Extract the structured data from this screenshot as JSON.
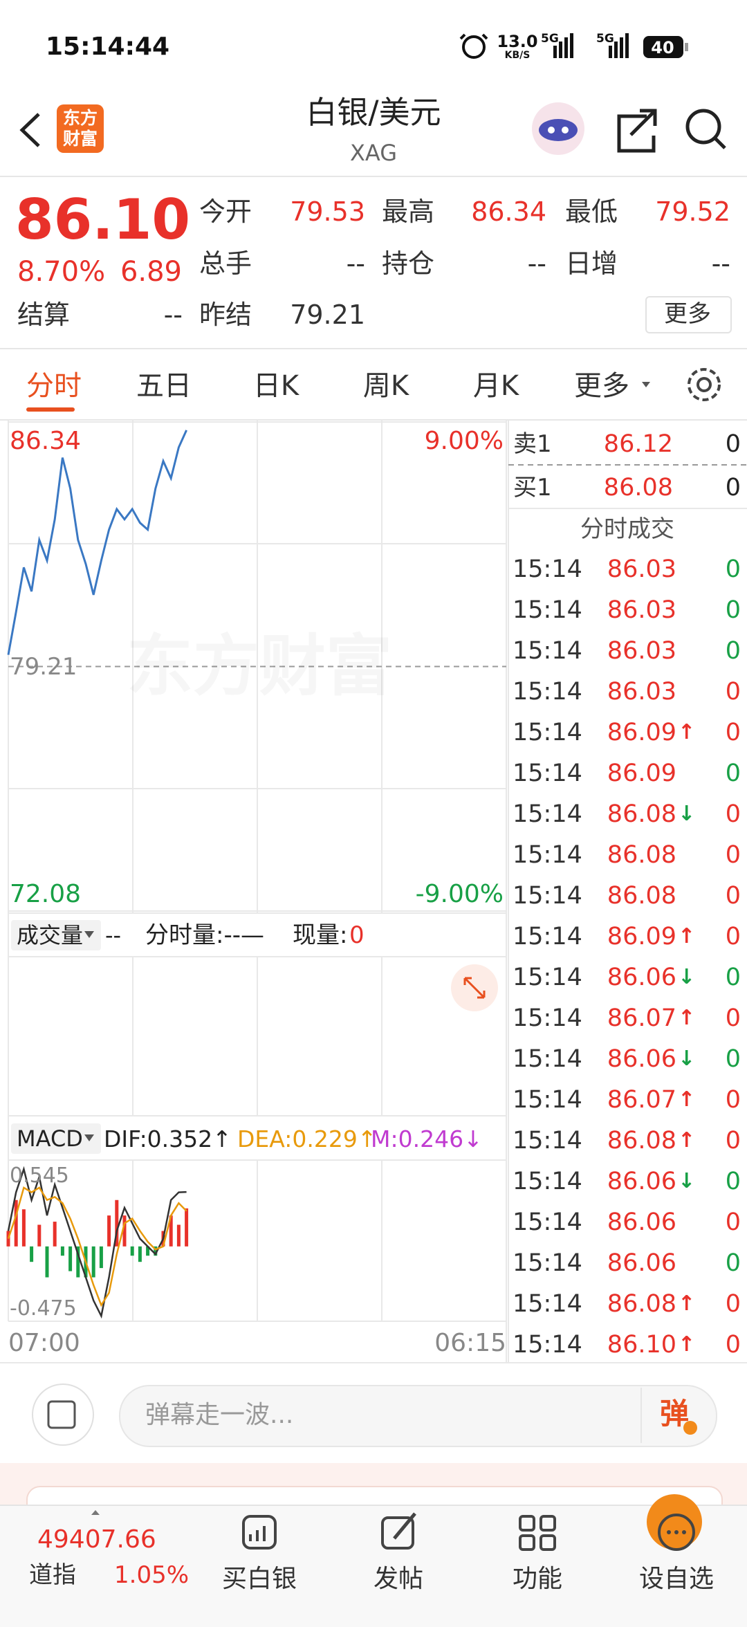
{
  "status_bar": {
    "time": "15:14:44",
    "net_speed": "13.0",
    "net_speed_unit": "KB/S",
    "signal_1": "5G",
    "signal_2": "5G",
    "battery": "40"
  },
  "header": {
    "logo_line1": "东方",
    "logo_line2": "财富",
    "title": "白银/美元",
    "subtitle": "XAG"
  },
  "quote": {
    "price": "86.10",
    "change_pct": "8.70%",
    "change": "6.89",
    "fields": [
      {
        "label": "今开",
        "value": "79.53"
      },
      {
        "label": "最高",
        "value": "86.34"
      },
      {
        "label": "最低",
        "value": "79.52"
      },
      {
        "label": "总手",
        "value": "--"
      },
      {
        "label": "持仓",
        "value": "--"
      },
      {
        "label": "日增",
        "value": "--"
      },
      {
        "label": "结算",
        "value": "--"
      },
      {
        "label": "昨结",
        "value": "79.21"
      }
    ],
    "more_button": "更多"
  },
  "tabs": [
    "分时",
    "五日",
    "日K",
    "周K",
    "月K",
    "更多"
  ],
  "intraday": {
    "top_price": 86.34,
    "top_pct": "9.00%",
    "prev_close": 79.21,
    "bottom_price": 72.08,
    "bottom_pct": "-9.00%",
    "watermark": "东方财富",
    "line_color": "#3a78c3",
    "prices": [
      79.55,
      80.8,
      82.1,
      81.4,
      82.9,
      82.3,
      83.5,
      85.3,
      84.4,
      82.9,
      82.2,
      81.3,
      82.3,
      83.2,
      83.8,
      83.5,
      83.8,
      83.4,
      83.2,
      84.4,
      85.2,
      84.7,
      85.6,
      86.1
    ],
    "start_time": "07:00",
    "end_time": "06:15"
  },
  "volume_panel": {
    "selector": "成交量",
    "total": "--",
    "minute_volume": "分时量:--—",
    "current_label": "现量:",
    "current": "0"
  },
  "macd": {
    "selector": "MACD",
    "dif": "DIF:0.352↑",
    "dea": "DEA:0.229↑",
    "m": "M:0.246↓",
    "top": 0.545,
    "bottom": -0.475,
    "dif_values": [
      0.1,
      0.35,
      0.5,
      0.3,
      0.45,
      0.2,
      0.4,
      0.25,
      0.1,
      -0.05,
      -0.2,
      -0.35,
      -0.45,
      -0.2,
      0.1,
      0.25,
      0.15,
      0.05,
      0.0,
      -0.05,
      0.05,
      0.3,
      0.35,
      0.352
    ],
    "dea_values": [
      0.05,
      0.2,
      0.38,
      0.35,
      0.38,
      0.3,
      0.32,
      0.28,
      0.18,
      0.05,
      -0.1,
      -0.25,
      -0.38,
      -0.3,
      -0.05,
      0.15,
      0.18,
      0.1,
      0.03,
      -0.02,
      0.0,
      0.2,
      0.28,
      0.229
    ],
    "hist_values": [
      0.1,
      0.3,
      0.24,
      -0.1,
      0.14,
      -0.2,
      0.16,
      -0.06,
      -0.16,
      -0.2,
      -0.2,
      -0.2,
      -0.14,
      0.2,
      0.3,
      0.2,
      -0.06,
      -0.1,
      -0.06,
      -0.06,
      0.1,
      0.2,
      0.14,
      0.246
    ]
  },
  "order_book": [
    {
      "label": "卖1",
      "price": "86.12",
      "volume": "0"
    },
    {
      "label": "买1",
      "price": "86.08",
      "volume": "0"
    }
  ],
  "trades_title": "分时成交",
  "trades": [
    {
      "time": "15:14",
      "price": "86.03",
      "volume": "0",
      "volume_color": "#18a046"
    },
    {
      "time": "15:14",
      "price": "86.03",
      "volume": "0",
      "volume_color": "#18a046"
    },
    {
      "time": "15:14",
      "price": "86.03",
      "volume": "0",
      "volume_color": "#18a046"
    },
    {
      "time": "15:14",
      "price": "86.03",
      "volume": "0",
      "volume_color": "#e8312a"
    },
    {
      "time": "15:14",
      "price": "86.09",
      "arrow": "↑",
      "volume": "0",
      "volume_color": "#e8312a"
    },
    {
      "time": "15:14",
      "price": "86.09",
      "volume": "0",
      "volume_color": "#18a046"
    },
    {
      "time": "15:14",
      "price": "86.08",
      "arrow": "↓",
      "volume": "0",
      "volume_color": "#e8312a"
    },
    {
      "time": "15:14",
      "price": "86.08",
      "volume": "0",
      "volume_color": "#e8312a"
    },
    {
      "time": "15:14",
      "price": "86.08",
      "volume": "0",
      "volume_color": "#e8312a"
    },
    {
      "time": "15:14",
      "price": "86.09",
      "arrow": "↑",
      "volume": "0",
      "volume_color": "#e8312a"
    },
    {
      "time": "15:14",
      "price": "86.06",
      "arrow": "↓",
      "volume": "0",
      "volume_color": "#18a046"
    },
    {
      "time": "15:14",
      "price": "86.07",
      "arrow": "↑",
      "volume": "0",
      "volume_color": "#e8312a"
    },
    {
      "time": "15:14",
      "price": "86.06",
      "arrow": "↓",
      "volume": "0",
      "volume_color": "#18a046"
    },
    {
      "time": "15:14",
      "price": "86.07",
      "arrow": "↑",
      "volume": "0",
      "volume_color": "#e8312a"
    },
    {
      "time": "15:14",
      "price": "86.08",
      "arrow": "↑",
      "volume": "0",
      "volume_color": "#e8312a"
    },
    {
      "time": "15:14",
      "price": "86.06",
      "arrow": "↓",
      "volume": "0",
      "volume_color": "#18a046"
    },
    {
      "time": "15:14",
      "price": "86.06",
      "volume": "0",
      "volume_color": "#e8312a"
    },
    {
      "time": "15:14",
      "price": "86.06",
      "volume": "0",
      "volume_color": "#18a046"
    },
    {
      "time": "15:14",
      "price": "86.08",
      "arrow": "↑",
      "volume": "0",
      "volume_color": "#e8312a"
    },
    {
      "time": "15:14",
      "price": "86.10",
      "arrow": "↑",
      "volume": "0",
      "volume_color": "#e8312a"
    }
  ],
  "comment_bar": {
    "placeholder": "弹幕走一波...",
    "button": "弹"
  },
  "bottom_nav": {
    "index_value": "49407.66",
    "index_name": "道指",
    "index_change": "1.05%",
    "items": [
      "买白银",
      "发帖",
      "功能",
      "设自选"
    ]
  }
}
